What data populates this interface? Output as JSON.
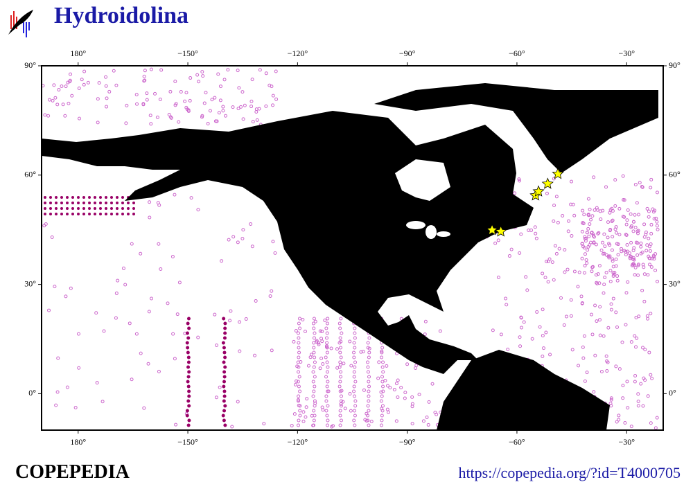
{
  "header": {
    "title": "Hydroidolina"
  },
  "map": {
    "xlim": [
      -190,
      -20
    ],
    "ylim": [
      -10,
      90
    ],
    "lon_ticks": [
      {
        "value": -180,
        "label": "180°"
      },
      {
        "value": -150,
        "label": "−150°"
      },
      {
        "value": -120,
        "label": "−120°"
      },
      {
        "value": -90,
        "label": "−90°"
      },
      {
        "value": -60,
        "label": "−60°"
      },
      {
        "value": -30,
        "label": "−30°"
      }
    ],
    "lat_ticks": [
      {
        "value": 0,
        "label": "0°"
      },
      {
        "value": 30,
        "label": "30°"
      },
      {
        "value": 60,
        "label": "60°"
      },
      {
        "value": 90,
        "label": "90°"
      }
    ],
    "stars": {
      "lon": [
        -66.8,
        -64.4,
        -54.9,
        -54.1,
        -51.6,
        -48.8
      ],
      "lat": [
        44.9,
        44.5,
        54.4,
        55.5,
        57.6,
        60.3
      ]
    }
  },
  "footer": {
    "brand": "COPEPEDIA",
    "url": "https://copepedia.org/?id=T4000705"
  }
}
